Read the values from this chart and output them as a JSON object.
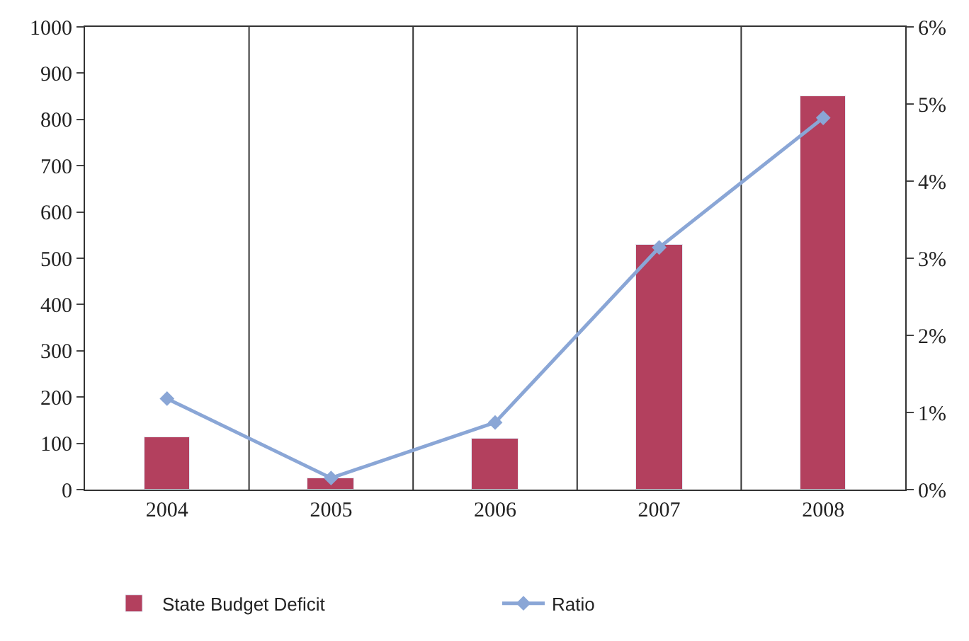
{
  "chart_data": {
    "type": "bar",
    "categories": [
      "2004",
      "2005",
      "2006",
      "2007",
      "2008"
    ],
    "series": [
      {
        "name": "State Budget Deficit",
        "color": "#b3405e",
        "values": [
          112,
          25,
          109,
          529,
          851
        ]
      },
      {
        "name": "Ratio",
        "type": "line",
        "axis": "y2",
        "color": "#8aa6d6",
        "values": [
          1.18,
          0.15,
          0.87,
          3.14,
          4.82
        ],
        "marker": "diamond"
      }
    ],
    "ylim": [
      0,
      1000
    ],
    "yticks": [
      0,
      100,
      200,
      300,
      400,
      500,
      600,
      700,
      800,
      900,
      1000
    ],
    "y2lim": [
      0,
      6
    ],
    "y2ticks": [
      {
        "value": 0,
        "label": "0%"
      },
      {
        "value": 1,
        "label": "1%"
      },
      {
        "value": 2,
        "label": "2%"
      },
      {
        "value": 3,
        "label": "3%"
      },
      {
        "value": 4,
        "label": "4%"
      },
      {
        "value": 5,
        "label": "5%"
      },
      {
        "value": 6,
        "label": "6%"
      }
    ],
    "grid": "x",
    "legend": "bottom"
  }
}
